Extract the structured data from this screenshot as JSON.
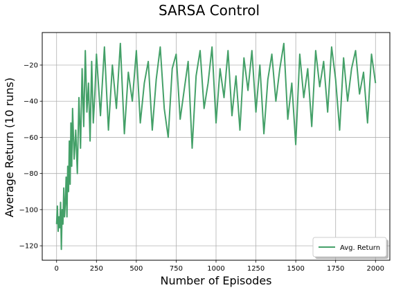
{
  "chart_data": {
    "type": "line",
    "title": "SARSA Control",
    "xlabel": "Number of Episodes",
    "ylabel": "Average Return (10 runs)",
    "xlim": [
      -90,
      2090
    ],
    "ylim": [
      -128,
      -2
    ],
    "xticks": [
      0,
      250,
      500,
      750,
      1000,
      1250,
      1500,
      1750,
      2000
    ],
    "xtick_labels": [
      "0",
      "250",
      "500",
      "750",
      "1000",
      "1250",
      "1500",
      "1750",
      "2000"
    ],
    "yticks": [
      -120,
      -100,
      -80,
      -60,
      -40,
      -20
    ],
    "ytick_labels": [
      "−120",
      "−100",
      "−80",
      "−60",
      "−40",
      "−20"
    ],
    "grid": true,
    "legend_position": "lower-right",
    "colors": {
      "series": "#44a068",
      "grid": "#b0b0b0"
    },
    "series": [
      {
        "name": "Avg. Return",
        "x": [
          0,
          5,
          10,
          15,
          20,
          25,
          30,
          35,
          40,
          45,
          50,
          55,
          60,
          65,
          70,
          75,
          80,
          85,
          90,
          95,
          100,
          110,
          120,
          130,
          140,
          150,
          160,
          170,
          180,
          190,
          200,
          210,
          220,
          230,
          240,
          250,
          275,
          300,
          325,
          350,
          375,
          400,
          425,
          450,
          475,
          500,
          525,
          550,
          575,
          600,
          625,
          650,
          675,
          700,
          725,
          750,
          775,
          800,
          825,
          850,
          875,
          900,
          925,
          950,
          975,
          1000,
          1025,
          1050,
          1075,
          1100,
          1125,
          1150,
          1175,
          1200,
          1225,
          1250,
          1275,
          1300,
          1325,
          1350,
          1375,
          1400,
          1425,
          1450,
          1475,
          1500,
          1525,
          1550,
          1575,
          1600,
          1625,
          1650,
          1675,
          1700,
          1725,
          1750,
          1775,
          1800,
          1825,
          1850,
          1875,
          1900,
          1925,
          1950,
          1975,
          2000
        ],
        "y": [
          -108,
          -98,
          -112,
          -104,
          -110,
          -96,
          -122,
          -100,
          -108,
          -88,
          -104,
          -96,
          -82,
          -104,
          -76,
          -90,
          -62,
          -86,
          -52,
          -76,
          -44,
          -72,
          -56,
          -80,
          -38,
          -66,
          -22,
          -54,
          -12,
          -46,
          -30,
          -62,
          -18,
          -52,
          -36,
          -14,
          -48,
          -10,
          -56,
          -20,
          -44,
          -8,
          -58,
          -24,
          -40,
          -12,
          -52,
          -30,
          -18,
          -56,
          -28,
          -10,
          -44,
          -60,
          -22,
          -14,
          -50,
          -34,
          -18,
          -66,
          -26,
          -12,
          -44,
          -30,
          -10,
          -52,
          -22,
          -38,
          -12,
          -48,
          -26,
          -56,
          -16,
          -34,
          -12,
          -46,
          -20,
          -58,
          -28,
          -14,
          -40,
          -22,
          -8,
          -50,
          -30,
          -64,
          -14,
          -38,
          -22,
          -54,
          -12,
          -32,
          -18,
          -46,
          -10,
          -28,
          -56,
          -16,
          -40,
          -22,
          -12,
          -36,
          -24,
          -52,
          -14,
          -30
        ]
      }
    ]
  }
}
